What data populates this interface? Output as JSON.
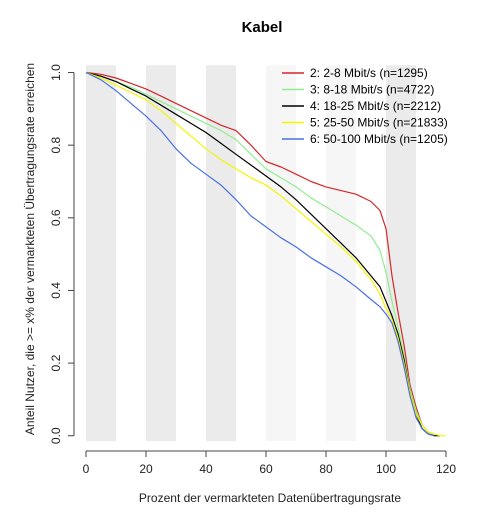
{
  "chart_data": {
    "type": "line",
    "title": "Kabel",
    "xlabel": "Prozent der vermarkteten Datenübertragungsrate",
    "ylabel": "Anteil Nutzer, die >= x% der vermarkteten Übertragungsrate erreichen",
    "xlim": [
      -2,
      122
    ],
    "ylim": [
      -0.02,
      1.04
    ],
    "xticks": [
      0,
      20,
      40,
      60,
      80,
      100,
      120
    ],
    "yticks": [
      0.0,
      0.2,
      0.4,
      0.6,
      0.8,
      1.0
    ],
    "ytick_labels": [
      "0.0",
      "0.2",
      "0.4",
      "0.6",
      "0.8",
      "1.0"
    ],
    "grid": false,
    "background_bands": {
      "width": 10,
      "dark_starts": [
        0,
        20,
        40,
        100
      ],
      "light_starts": [
        60,
        80
      ],
      "dark_color": "#ebebeb",
      "light_color": "#f6f6f6",
      "range": [
        0,
        110
      ]
    },
    "legend_position": "top-right",
    "series": [
      {
        "name": "2: 2-8 Mbit/s (n=1295)",
        "color": "#d62728",
        "x": [
          0,
          5,
          10,
          15,
          20,
          25,
          30,
          35,
          40,
          45,
          50,
          55,
          60,
          65,
          70,
          75,
          80,
          85,
          90,
          95,
          98,
          100,
          102,
          104,
          106,
          108,
          110,
          112,
          114,
          116
        ],
        "y": [
          1.0,
          0.995,
          0.985,
          0.97,
          0.955,
          0.935,
          0.915,
          0.895,
          0.875,
          0.855,
          0.84,
          0.8,
          0.755,
          0.74,
          0.72,
          0.7,
          0.685,
          0.675,
          0.665,
          0.645,
          0.62,
          0.57,
          0.44,
          0.34,
          0.25,
          0.14,
          0.08,
          0.03,
          0.01,
          0.0
        ]
      },
      {
        "name": "3: 8-18 Mbit/s (n=4722)",
        "color": "#90ee90",
        "x": [
          0,
          5,
          10,
          15,
          20,
          25,
          30,
          35,
          40,
          45,
          50,
          55,
          60,
          65,
          70,
          75,
          80,
          85,
          90,
          95,
          98,
          100,
          102,
          104,
          106,
          108,
          110,
          112,
          114,
          116,
          118
        ],
        "y": [
          1.0,
          0.99,
          0.975,
          0.96,
          0.94,
          0.92,
          0.9,
          0.88,
          0.86,
          0.84,
          0.815,
          0.775,
          0.735,
          0.71,
          0.685,
          0.655,
          0.63,
          0.605,
          0.58,
          0.55,
          0.51,
          0.45,
          0.37,
          0.3,
          0.22,
          0.13,
          0.07,
          0.03,
          0.01,
          0.0,
          0.0
        ]
      },
      {
        "name": "4: 18-25 Mbit/s (n=2212)",
        "color": "#000000",
        "x": [
          0,
          5,
          10,
          15,
          20,
          25,
          30,
          35,
          40,
          45,
          50,
          55,
          60,
          65,
          70,
          75,
          80,
          85,
          90,
          95,
          98,
          100,
          102,
          104,
          106,
          108,
          110,
          112,
          114,
          116,
          118
        ],
        "y": [
          1.0,
          0.99,
          0.975,
          0.955,
          0.935,
          0.91,
          0.885,
          0.86,
          0.835,
          0.805,
          0.775,
          0.745,
          0.715,
          0.685,
          0.65,
          0.61,
          0.57,
          0.53,
          0.49,
          0.44,
          0.41,
          0.37,
          0.33,
          0.28,
          0.21,
          0.12,
          0.06,
          0.02,
          0.005,
          0.0,
          0.0
        ]
      },
      {
        "name": "5: 25-50 Mbit/s (n=21833)",
        "color": "#f5f500",
        "x": [
          0,
          5,
          10,
          15,
          20,
          25,
          30,
          35,
          40,
          45,
          50,
          55,
          60,
          65,
          70,
          75,
          80,
          85,
          90,
          95,
          98,
          100,
          102,
          104,
          106,
          108,
          110,
          112,
          114,
          116,
          118,
          120
        ],
        "y": [
          1.0,
          0.985,
          0.965,
          0.945,
          0.925,
          0.895,
          0.86,
          0.825,
          0.79,
          0.76,
          0.735,
          0.71,
          0.69,
          0.66,
          0.625,
          0.59,
          0.555,
          0.52,
          0.48,
          0.43,
          0.39,
          0.35,
          0.32,
          0.27,
          0.2,
          0.12,
          0.06,
          0.03,
          0.01,
          0.005,
          0.0,
          0.0
        ]
      },
      {
        "name": "6: 50-100 Mbit/s (n=1205)",
        "color": "#4a6fe3",
        "x": [
          0,
          5,
          10,
          15,
          20,
          25,
          30,
          35,
          40,
          45,
          50,
          55,
          60,
          65,
          70,
          75,
          80,
          85,
          90,
          95,
          98,
          100,
          102,
          104,
          106,
          108,
          110,
          112,
          114,
          116
        ],
        "y": [
          1.0,
          0.98,
          0.95,
          0.915,
          0.88,
          0.84,
          0.79,
          0.75,
          0.72,
          0.69,
          0.65,
          0.605,
          0.575,
          0.545,
          0.52,
          0.49,
          0.465,
          0.44,
          0.41,
          0.375,
          0.355,
          0.335,
          0.31,
          0.26,
          0.19,
          0.11,
          0.05,
          0.02,
          0.005,
          0.0
        ]
      }
    ]
  }
}
